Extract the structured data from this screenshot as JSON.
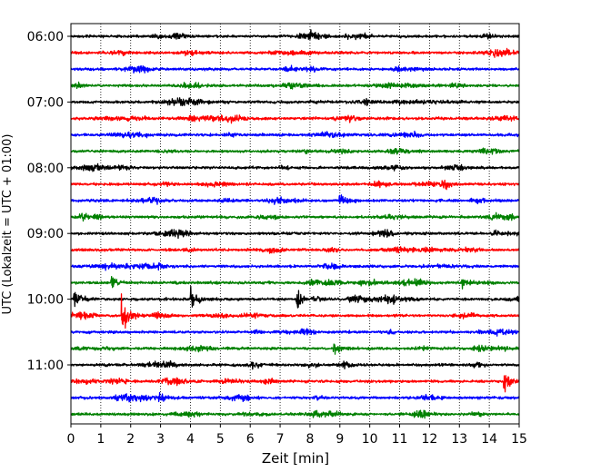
{
  "chart_data": {
    "type": "line",
    "title": "",
    "subtitle": "",
    "xlabel": "Zeit  [min]",
    "ylabel": "UTC (Lokalzeit = UTC + 01:00)",
    "xlim": [
      0,
      15
    ],
    "x_ticks": [
      0,
      1,
      2,
      3,
      4,
      5,
      6,
      7,
      8,
      9,
      10,
      11,
      12,
      13,
      14,
      15
    ],
    "x_tick_labels": [
      "0",
      "1",
      "2",
      "3",
      "4",
      "5",
      "6",
      "7",
      "8",
      "9",
      "10",
      "11",
      "12",
      "13",
      "14",
      "15"
    ],
    "y_tick_labels": [
      "06:00",
      "07:00",
      "08:00",
      "09:00",
      "10:00",
      "11:00"
    ],
    "rows_per_hour": 4,
    "trace_count": 24,
    "trace_start_times": [
      "06:00",
      "06:15",
      "06:30",
      "06:45",
      "07:00",
      "07:15",
      "07:30",
      "07:45",
      "08:00",
      "08:15",
      "08:30",
      "08:45",
      "09:00",
      "09:15",
      "09:30",
      "09:45",
      "10:00",
      "10:15",
      "10:30",
      "10:45",
      "11:00",
      "11:15",
      "11:30",
      "11:45"
    ],
    "series_colors": [
      "#000000",
      "#ff0000",
      "#0000ff",
      "#008000"
    ],
    "x_grid": "dotted",
    "legend": "none",
    "events": [
      {
        "row": 21,
        "minute": 14.5,
        "amplitude": "large"
      },
      {
        "row": 16,
        "minute": 0.1,
        "amplitude": "large"
      },
      {
        "row": 16,
        "minute": 4.0,
        "amplitude": "large"
      },
      {
        "row": 16,
        "minute": 7.55,
        "amplitude": "large"
      },
      {
        "row": 17,
        "minute": 1.7,
        "amplitude": "very large"
      },
      {
        "row": 15,
        "minute": 1.35,
        "amplitude": "medium"
      },
      {
        "row": 15,
        "minute": 13.1,
        "amplitude": "medium"
      },
      {
        "row": 22,
        "minute": 2.95,
        "amplitude": "medium"
      },
      {
        "row": 10,
        "minute": 9.0,
        "amplitude": "medium"
      },
      {
        "row": 19,
        "minute": 8.8,
        "amplitude": "medium"
      }
    ]
  }
}
